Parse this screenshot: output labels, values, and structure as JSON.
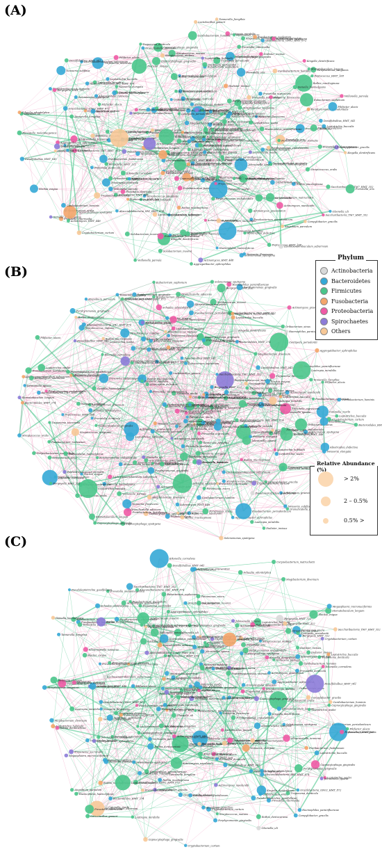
{
  "panels": [
    {
      "id": "A",
      "label": "(A)"
    },
    {
      "id": "B",
      "label": "(B)"
    },
    {
      "id": "C",
      "label": "(C)"
    }
  ],
  "phylum_legend": {
    "title": "Phylum",
    "items": [
      {
        "name": "Actinobacteria",
        "color": "#d9d9d9"
      },
      {
        "name": "Bacteroidetes",
        "color": "#35a8d6"
      },
      {
        "name": "Firmicutes",
        "color": "#4ac58b"
      },
      {
        "name": "Fusobacteria",
        "color": "#f4a56a"
      },
      {
        "name": "Proteobacteria",
        "color": "#f05aa5"
      },
      {
        "name": "Spirochaetes",
        "color": "#8c7bd8"
      },
      {
        "name": "Others",
        "color": "#f7c897"
      }
    ]
  },
  "abundance_legend": {
    "title": "Relative Abundance (%)",
    "items": [
      {
        "label": "> 2%"
      },
      {
        "label": "2 – 0.5%"
      },
      {
        "label": "0.5% >"
      }
    ]
  },
  "edge_colors": {
    "positive": "#4ac58b",
    "negative": "#f29bc2"
  },
  "node_labels": [
    "Streptococcus_mutans",
    "Porphyromonas_gingivalis",
    "Fusobacterium_nucleatum",
    "Prevotella_intermedia",
    "Tannerella_forsythia",
    "Treponema_denticola",
    "Veillonella_parvula",
    "Actinomyces_naeslundii",
    "Neisseria_flavescens",
    "Haemophilus_parainfluenzae",
    "Rothia_mucilaginosa",
    "Capnocytophaga_gingivalis",
    "Leptotrichia_buccalis",
    "Gemella_haemolysans",
    "Granulicatella_adiacens",
    "Campylobacter_gracilis",
    "Selenomonas_sputigena",
    "Eikenella_corrodens",
    "Aggregatibacter_aphrophilus",
    "Lautropia_mirabilis",
    "Saccharibacteria_TM7_HMT_352",
    "Peptostreptococcus_stomatis",
    "Parvimonas_micra",
    "Filifactor_alocis",
    "Dialister_invisus",
    "Catonella_morbi",
    "Solobacterium_moorei",
    "Kingella_denitrificans",
    "Cardiobacterium_hominis",
    "Corynebacterium_matruchotii",
    "Alloprevotella_tannerae",
    "Bergeyella_HMT_322",
    "Lachnoanaerobaculum_saburreum",
    "Oribacterium_sinus",
    "Stomatobaculum_longum",
    "Mogibacterium_diversum",
    "Eubacterium_saphenum",
    "Johnsonella_ignava",
    "Centipeda_periodontii",
    "Treponema_socranskii",
    "Prevotella_melaninogenica",
    "Prevotella_nigrescens",
    "Streptococcus_sanguinis",
    "Streptococcus_oralis",
    "Capnocytophaga_sputigena",
    "Leptotrichia_hofstadii",
    "Neisseria_elongata",
    "Actinomyces_HMT_448",
    "Fretibacterium_fastidiosum",
    "Desulfobulbus_HMT_041",
    "Peptococcus_HMT_168",
    "Megasphaera_micronuciformis",
    "Atopobium_parvulum",
    "Olsenella_uli",
    "Cryptobacterium_curtum",
    "Slackia_exigua",
    "Bacteroidales_HMT_274",
    "Porphyromonas_endodontalis",
    "Prevotella_oris",
    "Prevotella_denticola",
    "Absconditabacteria_SR1_HMT_874",
    "Gracilibacteria_GN02_HMT_872",
    "Lactobacillus_gasseri",
    "Abiotrophia_defectiva",
    "Leptotrichia_wadei",
    "Fusobacterium_periodonticum",
    "Haemophilus_haemolyticus",
    "Neisseria_subflava",
    "Rothia_dentocariosa",
    "Actinomyces_graevenitzii",
    "Schaalia_odontolytica",
    "Pseudoleptotrichia_goodfellowii"
  ]
}
